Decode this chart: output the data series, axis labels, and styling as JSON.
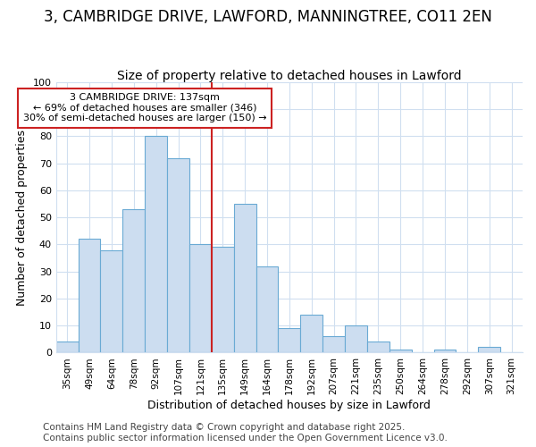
{
  "title": "3, CAMBRIDGE DRIVE, LAWFORD, MANNINGTREE, CO11 2EN",
  "subtitle": "Size of property relative to detached houses in Lawford",
  "xlabel": "Distribution of detached houses by size in Lawford",
  "ylabel": "Number of detached properties",
  "categories": [
    "35sqm",
    "49sqm",
    "64sqm",
    "78sqm",
    "92sqm",
    "107sqm",
    "121sqm",
    "135sqm",
    "149sqm",
    "164sqm",
    "178sqm",
    "192sqm",
    "207sqm",
    "221sqm",
    "235sqm",
    "250sqm",
    "264sqm",
    "278sqm",
    "292sqm",
    "307sqm",
    "321sqm"
  ],
  "values": [
    4,
    42,
    38,
    53,
    80,
    72,
    40,
    39,
    55,
    32,
    9,
    14,
    6,
    10,
    4,
    1,
    0,
    1,
    0,
    2,
    0
  ],
  "bar_color": "#ccddf0",
  "bar_edge_color": "#6aaad4",
  "vline_x_index": 7,
  "vline_color": "#cc2222",
  "annotation_text": "3 CAMBRIDGE DRIVE: 137sqm\n← 69% of detached houses are smaller (346)\n30% of semi-detached houses are larger (150) →",
  "annotation_box_color": "#ffffff",
  "annotation_box_edge": "#cc2222",
  "ylim": [
    0,
    100
  ],
  "yticks": [
    0,
    10,
    20,
    30,
    40,
    50,
    60,
    70,
    80,
    90,
    100
  ],
  "footnote": "Contains HM Land Registry data © Crown copyright and database right 2025.\nContains public sector information licensed under the Open Government Licence v3.0.",
  "bg_color": "#ffffff",
  "plot_bg_color": "#ffffff",
  "grid_color": "#d0dff0",
  "title_fontsize": 12,
  "subtitle_fontsize": 10,
  "footnote_fontsize": 7.5,
  "axis_label_fontsize": 9
}
